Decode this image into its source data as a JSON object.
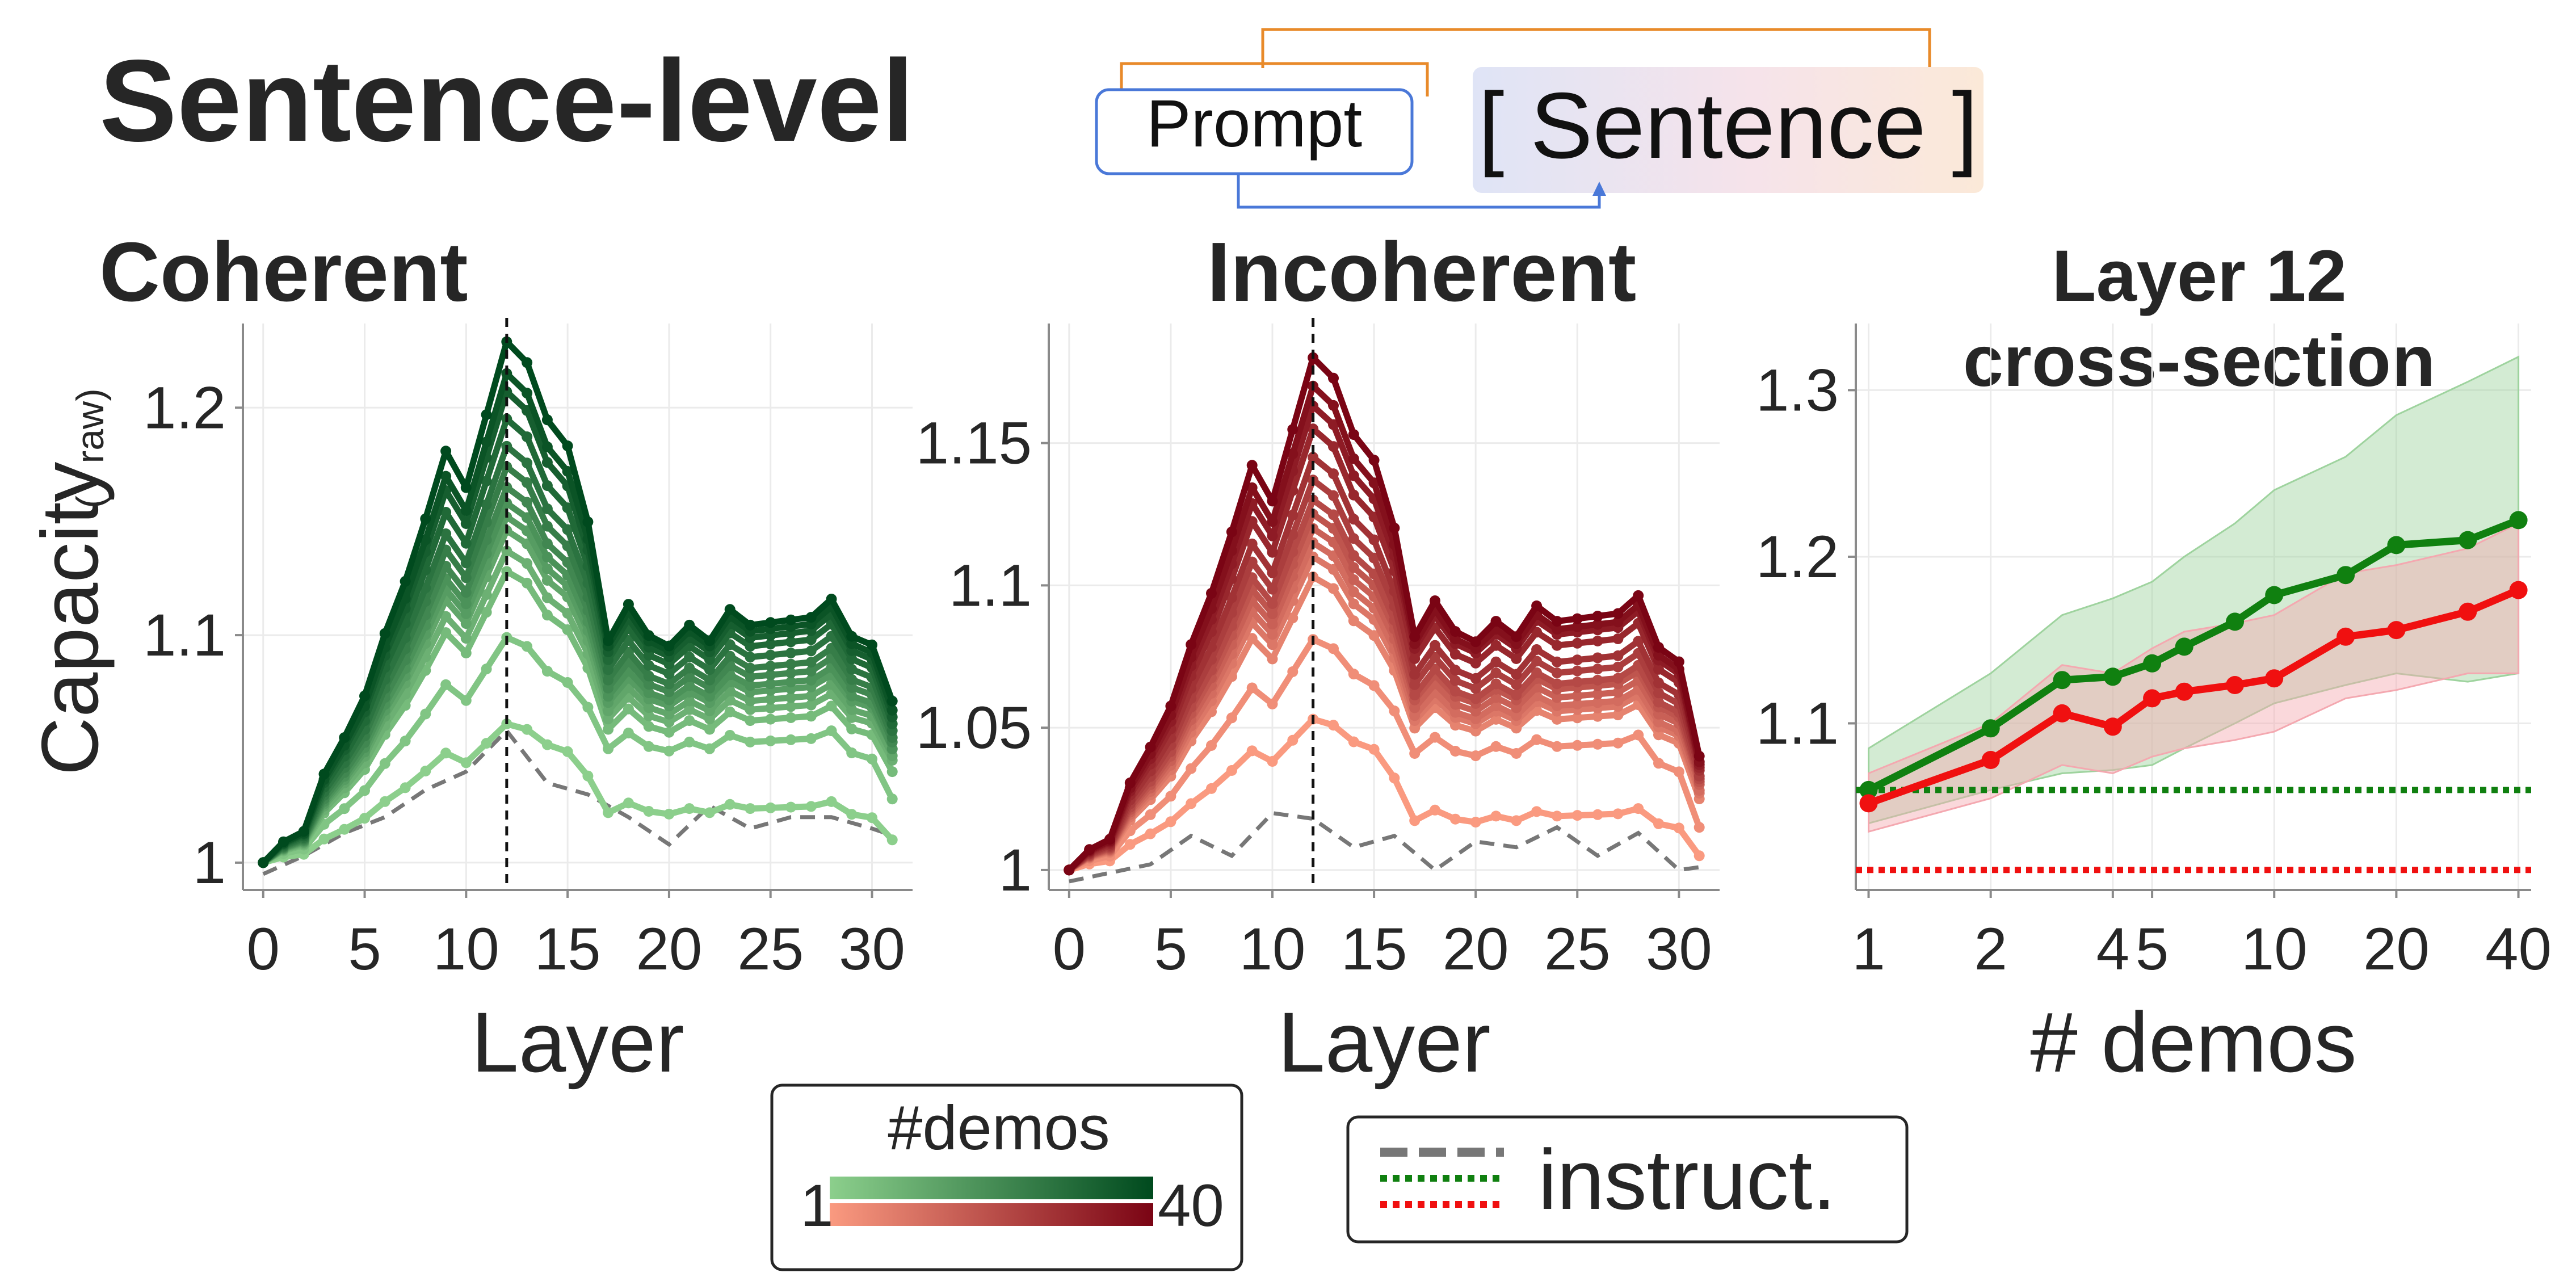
{
  "figure": {
    "title": "Sentence-level",
    "diagram": {
      "prompt_label": "Prompt",
      "sentence_label": "[ Sentence ]"
    },
    "legend_demos": {
      "title": "#demos",
      "min_label": "1",
      "max_label": "40"
    },
    "legend_instruct": {
      "label": "instruct."
    }
  },
  "colors": {
    "green_light": "#8ccf8c",
    "green_dark": "#004a1e",
    "red_light": "#fa9a80",
    "red_dark": "#7a0414",
    "green": "#108010",
    "red": "#f01010",
    "gray": "#777777",
    "orange": "#e88a2a",
    "blue": "#4a78d8"
  },
  "chart_data": [
    {
      "type": "line",
      "title": "Coherent",
      "xlabel": "Layer",
      "ylabel": "Capacity",
      "ylabel_suffix": "( / raw)",
      "xlim": [
        -1,
        32
      ],
      "ylim": [
        0.988,
        1.237
      ],
      "xticks": [
        0,
        5,
        10,
        15,
        20,
        25,
        30
      ],
      "yticks": [
        1,
        1.1,
        1.2
      ],
      "ytick_labels": [
        "1",
        "1.1",
        "1.2"
      ],
      "vline": 12,
      "palette": "greens",
      "demo_series": [
        {
          "peak": 1.061,
          "plateau": 1.025,
          "dip": 1.01
        },
        {
          "peak": 1.099,
          "plateau": 1.055,
          "dip": 1.028
        },
        {
          "peak": 1.128,
          "plateau": 1.065,
          "dip": 1.04
        },
        {
          "peak": 1.137,
          "plateau": 1.07,
          "dip": 1.045
        },
        {
          "peak": 1.146,
          "plateau": 1.074,
          "dip": 1.047
        },
        {
          "peak": 1.152,
          "plateau": 1.078,
          "dip": 1.05
        },
        {
          "peak": 1.158,
          "plateau": 1.081,
          "dip": 1.05
        },
        {
          "peak": 1.165,
          "plateau": 1.085,
          "dip": 1.053
        },
        {
          "peak": 1.174,
          "plateau": 1.089,
          "dip": 1.055
        },
        {
          "peak": 1.183,
          "plateau": 1.094,
          "dip": 1.058
        },
        {
          "peak": 1.195,
          "plateau": 1.099,
          "dip": 1.061
        },
        {
          "peak": 1.207,
          "plateau": 1.103,
          "dip": 1.064
        },
        {
          "peak": 1.215,
          "plateau": 1.106,
          "dip": 1.067
        },
        {
          "peak": 1.229,
          "plateau": 1.109,
          "dip": 1.071
        }
      ],
      "instruct_series": {
        "x": [
          0,
          2,
          4,
          6,
          8,
          10,
          12,
          14,
          16,
          18,
          20,
          22,
          24,
          26,
          28,
          30,
          31
        ],
        "y": [
          0.995,
          1.003,
          1.013,
          1.02,
          1.032,
          1.04,
          1.058,
          1.035,
          1.03,
          1.02,
          1.008,
          1.025,
          1.015,
          1.02,
          1.02,
          1.015,
          1.012
        ]
      }
    },
    {
      "type": "line",
      "title": "Incoherent",
      "xlabel": "Layer",
      "ylabel": "",
      "xlim": [
        -1,
        32
      ],
      "ylim": [
        0.993,
        1.192
      ],
      "xticks": [
        0,
        5,
        10,
        15,
        20,
        25,
        30
      ],
      "yticks": [
        1,
        1.05,
        1.1,
        1.15
      ],
      "ytick_labels": [
        "1",
        "1.05",
        "1.1",
        "1.15"
      ],
      "vline": 12,
      "palette": "reds",
      "demo_series": [
        {
          "peak": 1.053,
          "plateau": 1.02,
          "dip": 1.005
        },
        {
          "peak": 1.081,
          "plateau": 1.045,
          "dip": 1.015
        },
        {
          "peak": 1.103,
          "plateau": 1.055,
          "dip": 1.025
        },
        {
          "peak": 1.11,
          "plateau": 1.058,
          "dip": 1.027
        },
        {
          "peak": 1.115,
          "plateau": 1.06,
          "dip": 1.028
        },
        {
          "peak": 1.12,
          "plateau": 1.063,
          "dip": 1.03
        },
        {
          "peak": 1.125,
          "plateau": 1.066,
          "dip": 1.031
        },
        {
          "peak": 1.13,
          "plateau": 1.068,
          "dip": 1.032
        },
        {
          "peak": 1.137,
          "plateau": 1.072,
          "dip": 1.033
        },
        {
          "peak": 1.145,
          "plateau": 1.076,
          "dip": 1.035
        },
        {
          "peak": 1.155,
          "plateau": 1.082,
          "dip": 1.036
        },
        {
          "peak": 1.163,
          "plateau": 1.086,
          "dip": 1.037
        },
        {
          "peak": 1.17,
          "plateau": 1.088,
          "dip": 1.038
        },
        {
          "peak": 1.18,
          "plateau": 1.091,
          "dip": 1.04
        }
      ],
      "instruct_series": {
        "x": [
          0,
          2,
          4,
          6,
          8,
          10,
          12,
          14,
          16,
          18,
          20,
          22,
          24,
          26,
          28,
          30,
          31
        ],
        "y": [
          0.996,
          0.999,
          1.002,
          1.012,
          1.005,
          1.02,
          1.018,
          1.008,
          1.012,
          1.0,
          1.01,
          1.008,
          1.015,
          1.005,
          1.013,
          1.0,
          1.001
        ]
      }
    },
    {
      "type": "line",
      "title": "Layer 12\ncross-section",
      "xlabel": "#  demos",
      "ylabel": "",
      "xscale": "log",
      "xlim": [
        0.93,
        43
      ],
      "ylim": [
        1.0,
        1.34
      ],
      "xticks": [
        1,
        2,
        4,
        5,
        10,
        20,
        40
      ],
      "yticks": [
        1.1,
        1.2,
        1.3
      ],
      "ytick_labels": [
        "1.1",
        "1.2",
        "1.3"
      ],
      "series": [
        {
          "name": "Coherent",
          "color": "#108010",
          "band_color": "#9ed39e",
          "x": [
            1,
            2,
            3,
            4,
            5,
            6,
            8,
            10,
            15,
            20,
            30,
            40
          ],
          "y": [
            1.06,
            1.097,
            1.126,
            1.128,
            1.136,
            1.146,
            1.161,
            1.177,
            1.189,
            1.207,
            1.21,
            1.222
          ],
          "lower": [
            1.04,
            1.06,
            1.07,
            1.072,
            1.075,
            1.085,
            1.1,
            1.112,
            1.123,
            1.13,
            1.125,
            1.13
          ],
          "upper": [
            1.085,
            1.13,
            1.165,
            1.175,
            1.185,
            1.2,
            1.22,
            1.24,
            1.26,
            1.285,
            1.305,
            1.32
          ]
        },
        {
          "name": "Incoherent",
          "color": "#f01010",
          "band_color": "#f4a8b0",
          "x": [
            1,
            2,
            3,
            4,
            5,
            6,
            8,
            10,
            15,
            20,
            30,
            40
          ],
          "y": [
            1.052,
            1.078,
            1.106,
            1.098,
            1.115,
            1.119,
            1.123,
            1.127,
            1.152,
            1.156,
            1.167,
            1.18
          ],
          "lower": [
            1.035,
            1.055,
            1.075,
            1.07,
            1.08,
            1.085,
            1.09,
            1.095,
            1.115,
            1.12,
            1.13,
            1.13
          ],
          "upper": [
            1.07,
            1.1,
            1.135,
            1.13,
            1.145,
            1.155,
            1.16,
            1.165,
            1.19,
            1.195,
            1.205,
            1.22
          ]
        }
      ],
      "hlines": [
        {
          "y": 1.06,
          "color": "#108010"
        },
        {
          "y": 1.012,
          "color": "#f01010"
        }
      ]
    }
  ]
}
